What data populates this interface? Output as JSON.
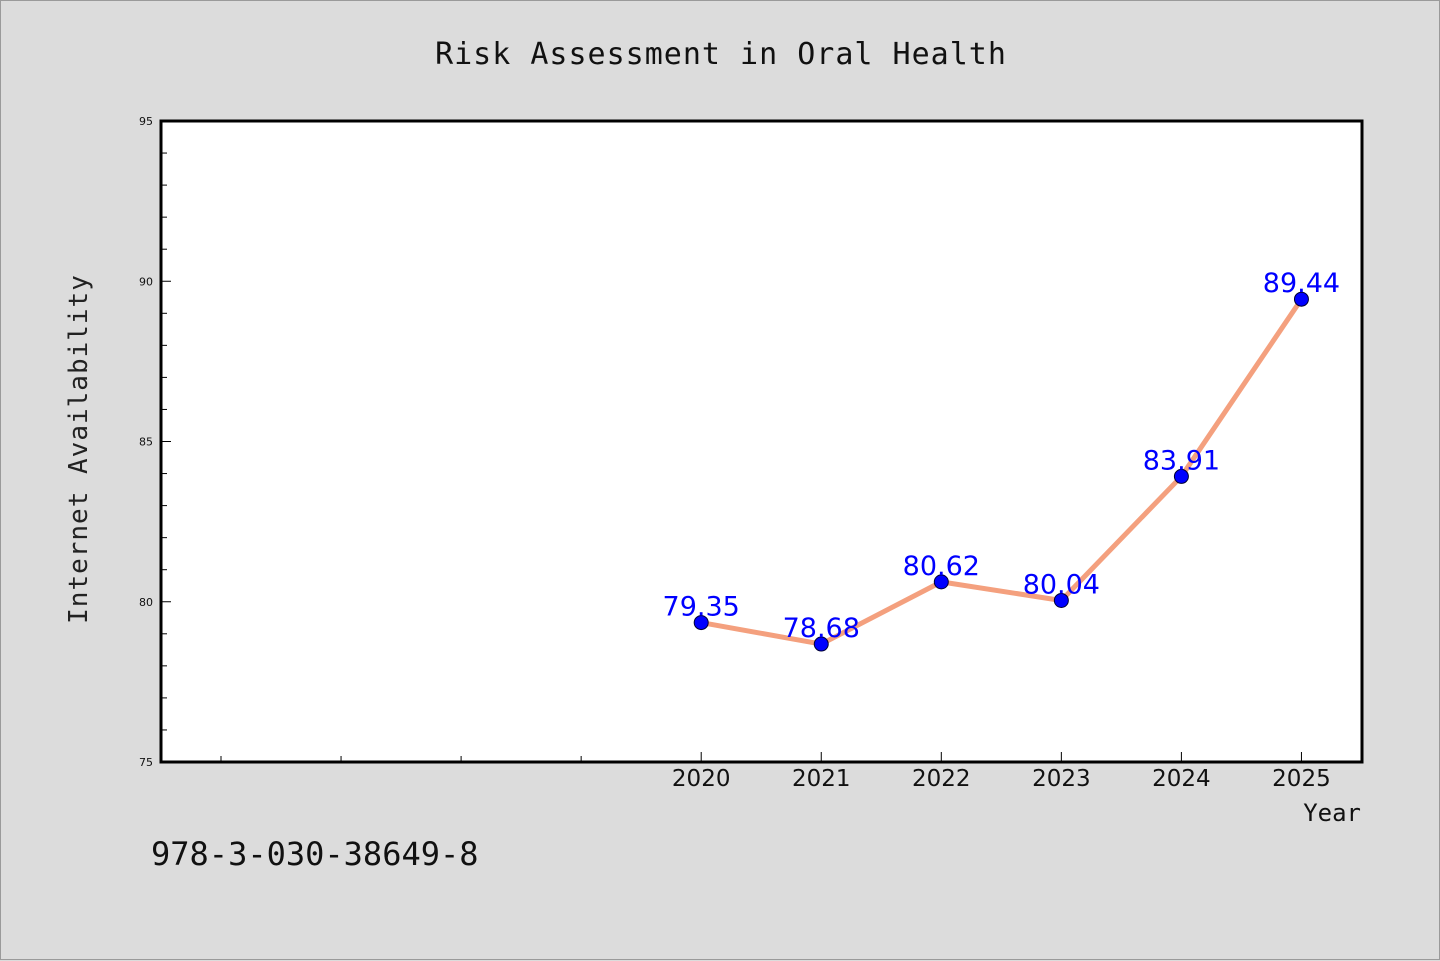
{
  "chart_data": {
    "type": "line",
    "title": "Risk Assessment in Oral Health",
    "xlabel": "Year",
    "ylabel": "Internet Availability",
    "categories": [
      "2020",
      "2021",
      "2022",
      "2023",
      "2024",
      "2025"
    ],
    "series": [
      {
        "values": [
          79.35,
          78.68,
          80.62,
          80.04,
          83.91,
          89.44
        ],
        "labels": [
          "79.35",
          "78.68",
          "80.62",
          "80.04",
          "83.91",
          "89.44"
        ],
        "line_color": "#f4a07e",
        "marker_color": "#0000ff"
      }
    ],
    "ylim": [
      75,
      95
    ],
    "yticks": [
      "75",
      "80",
      "85",
      "90",
      "95"
    ],
    "grid": false,
    "legend": "none"
  },
  "footer": {
    "isbn": "978-3-030-38649-8"
  }
}
